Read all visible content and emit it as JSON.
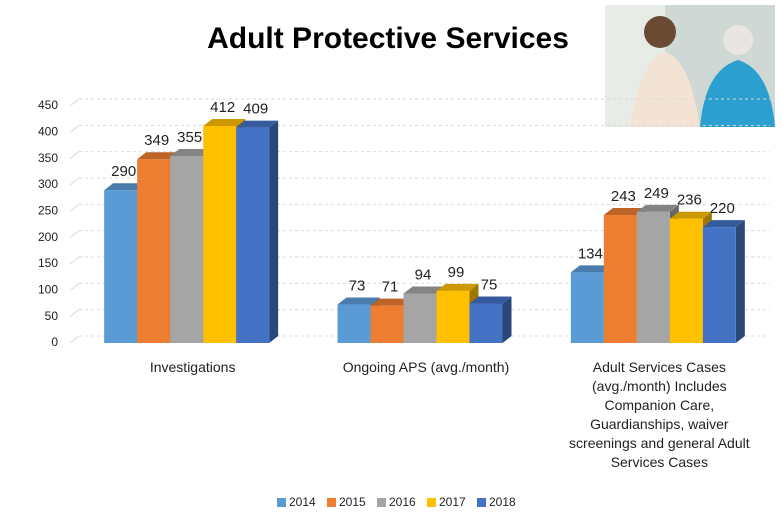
{
  "chart_data": {
    "type": "bar3d",
    "title": "Adult Protective Services",
    "categories": [
      "Investigations",
      "Ongoing APS (avg./month)",
      "Adult Services Cases (avg./month) Includes Companion Care, Guardianships, waiver screenings and general Adult Services Cases"
    ],
    "series": [
      {
        "name": "2014",
        "color": "#5b9bd5",
        "values": [
          290,
          73,
          134
        ]
      },
      {
        "name": "2015",
        "color": "#ed7d31",
        "values": [
          349,
          71,
          243
        ]
      },
      {
        "name": "2016",
        "color": "#a5a5a5",
        "values": [
          355,
          94,
          249
        ]
      },
      {
        "name": "2017",
        "color": "#ffc000",
        "values": [
          412,
          99,
          236
        ]
      },
      {
        "name": "2018",
        "color": "#4472c4",
        "values": [
          409,
          75,
          220
        ]
      }
    ],
    "ylim": [
      0,
      450
    ],
    "yticks": [
      0,
      50,
      100,
      150,
      200,
      250,
      300,
      350,
      400,
      450
    ],
    "grid": true,
    "legend": "bottom"
  }
}
